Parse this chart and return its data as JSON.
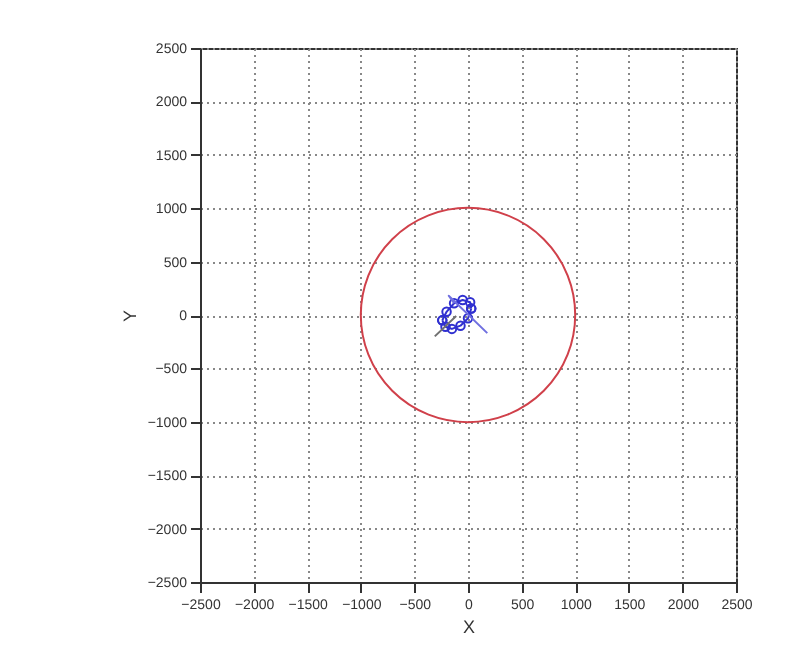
{
  "chart_data": {
    "type": "line",
    "xlabel": "X",
    "ylabel": "Y",
    "xlim": [
      -2500,
      2500
    ],
    "ylim": [
      -2500,
      2500
    ],
    "xticks": [
      -2500,
      -2000,
      -1500,
      -1000,
      -500,
      0,
      500,
      1000,
      1500,
      2000,
      2500
    ],
    "yticks": [
      -2500,
      -2000,
      -1500,
      -1000,
      -500,
      0,
      500,
      1000,
      1500,
      2000,
      2500
    ],
    "grid": true,
    "series": [
      {
        "color": "#3030d0",
        "marker": "circle",
        "x": [
          -240,
          -200,
          -130,
          -50,
          20,
          30
        ],
        "values": [
          -50,
          30,
          110,
          140,
          120,
          60
        ]
      },
      {
        "color": "#3030d0",
        "marker": "circle",
        "x": [
          30,
          0,
          -70,
          -150,
          -210,
          -240
        ],
        "values": [
          60,
          -30,
          -100,
          -130,
          -110,
          -50
        ]
      },
      {
        "color": "#7070e0",
        "marker": "none",
        "x": [
          -130,
          -180,
          180
        ],
        "values": [
          110,
          180,
          -170
        ]
      },
      {
        "color": "#707070",
        "marker": "none",
        "x": [
          -110,
          -310
        ],
        "values": [
          -10,
          -200
        ]
      }
    ]
  }
}
